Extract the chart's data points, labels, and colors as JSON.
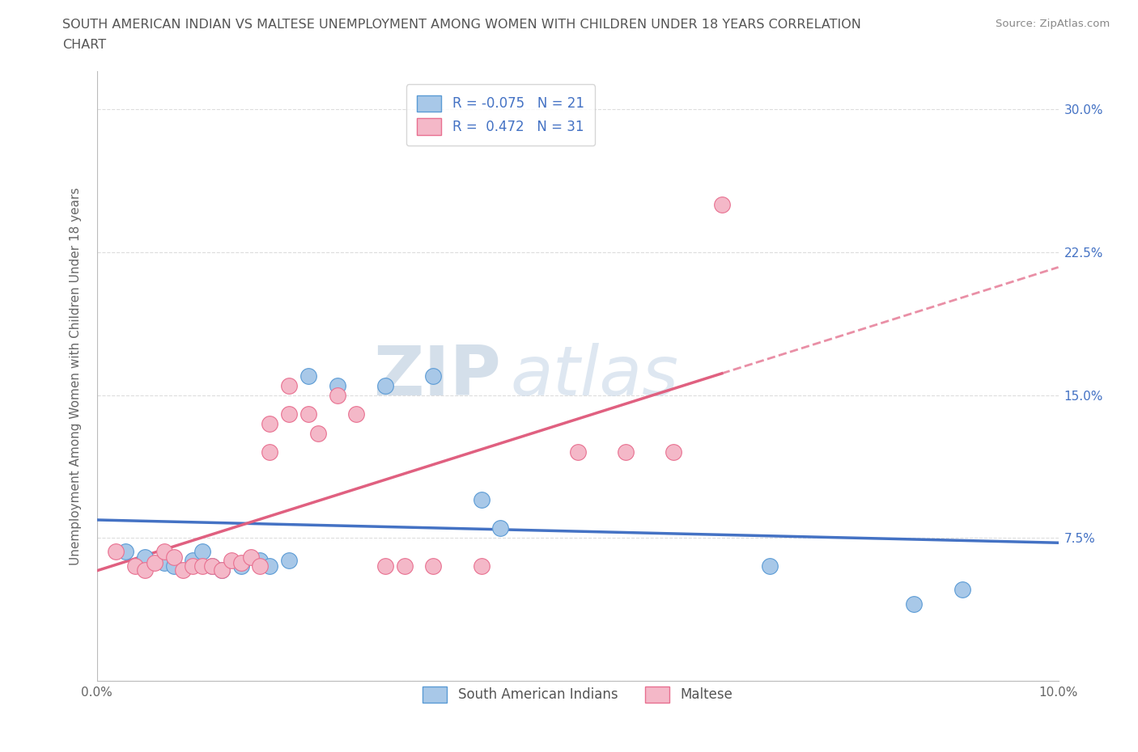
{
  "title_line1": "SOUTH AMERICAN INDIAN VS MALTESE UNEMPLOYMENT AMONG WOMEN WITH CHILDREN UNDER 18 YEARS CORRELATION",
  "title_line2": "CHART",
  "source": "Source: ZipAtlas.com",
  "ylabel": "Unemployment Among Women with Children Under 18 years",
  "xlim": [
    0.0,
    0.1
  ],
  "ylim": [
    0.0,
    0.32
  ],
  "xtick_vals": [
    0.0,
    0.02,
    0.04,
    0.06,
    0.08,
    0.1
  ],
  "xticklabels": [
    "0.0%",
    "",
    "",
    "",
    "",
    "10.0%"
  ],
  "ytick_vals": [
    0.0,
    0.075,
    0.15,
    0.225,
    0.3
  ],
  "yticklabels": [
    "",
    "7.5%",
    "15.0%",
    "22.5%",
    "30.0%"
  ],
  "blue_color": "#a8c8e8",
  "pink_color": "#f4b8c8",
  "blue_edge_color": "#5b9bd5",
  "pink_edge_color": "#e87090",
  "blue_line_color": "#4472c4",
  "pink_line_color": "#e06080",
  "blue_R": -0.075,
  "blue_N": 21,
  "pink_R": 0.472,
  "pink_N": 31,
  "blue_points": [
    [
      0.003,
      0.068
    ],
    [
      0.005,
      0.065
    ],
    [
      0.007,
      0.062
    ],
    [
      0.008,
      0.06
    ],
    [
      0.01,
      0.063
    ],
    [
      0.011,
      0.068
    ],
    [
      0.012,
      0.06
    ],
    [
      0.013,
      0.058
    ],
    [
      0.015,
      0.06
    ],
    [
      0.017,
      0.063
    ],
    [
      0.018,
      0.06
    ],
    [
      0.02,
      0.063
    ],
    [
      0.022,
      0.16
    ],
    [
      0.025,
      0.155
    ],
    [
      0.03,
      0.155
    ],
    [
      0.035,
      0.16
    ],
    [
      0.04,
      0.095
    ],
    [
      0.042,
      0.08
    ],
    [
      0.07,
      0.06
    ],
    [
      0.085,
      0.04
    ],
    [
      0.09,
      0.048
    ]
  ],
  "pink_points": [
    [
      0.002,
      0.068
    ],
    [
      0.004,
      0.06
    ],
    [
      0.005,
      0.058
    ],
    [
      0.006,
      0.062
    ],
    [
      0.007,
      0.068
    ],
    [
      0.008,
      0.065
    ],
    [
      0.009,
      0.058
    ],
    [
      0.01,
      0.06
    ],
    [
      0.011,
      0.06
    ],
    [
      0.012,
      0.06
    ],
    [
      0.013,
      0.058
    ],
    [
      0.014,
      0.063
    ],
    [
      0.015,
      0.062
    ],
    [
      0.016,
      0.065
    ],
    [
      0.017,
      0.06
    ],
    [
      0.018,
      0.12
    ],
    [
      0.018,
      0.135
    ],
    [
      0.02,
      0.14
    ],
    [
      0.02,
      0.155
    ],
    [
      0.022,
      0.14
    ],
    [
      0.023,
      0.13
    ],
    [
      0.025,
      0.15
    ],
    [
      0.027,
      0.14
    ],
    [
      0.03,
      0.06
    ],
    [
      0.032,
      0.06
    ],
    [
      0.035,
      0.06
    ],
    [
      0.04,
      0.06
    ],
    [
      0.05,
      0.12
    ],
    [
      0.055,
      0.12
    ],
    [
      0.06,
      0.12
    ],
    [
      0.065,
      0.25
    ]
  ],
  "grid_color": "#dddddd",
  "watermark_color": "#d0dce8"
}
